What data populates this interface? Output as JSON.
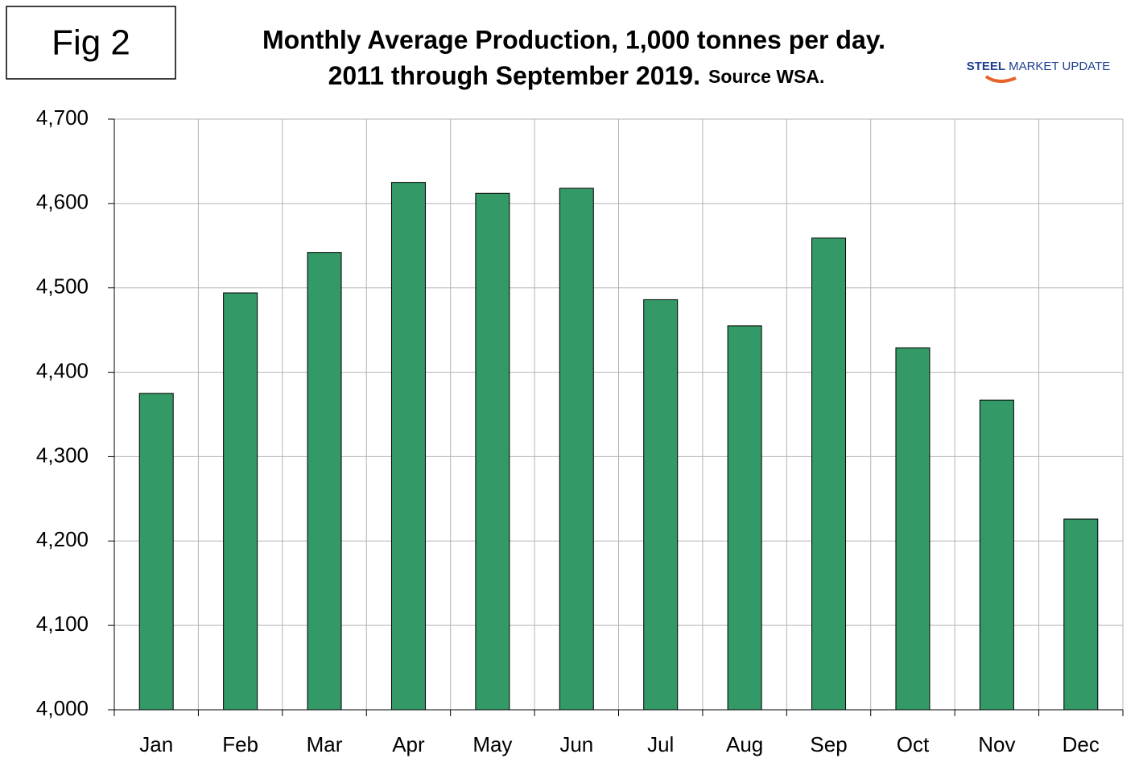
{
  "chart_data": {
    "type": "bar",
    "figure_label": "Fig 2",
    "title": "Monthly Average Production, 1,000 tonnes per day.",
    "subtitle": "2011 through September 2019.",
    "source": "Source WSA.",
    "logo": {
      "brand": "STEEL",
      "rest": "MARKET UPDATE"
    },
    "categories": [
      "Jan",
      "Feb",
      "Mar",
      "Apr",
      "May",
      "Jun",
      "Jul",
      "Aug",
      "Sep",
      "Oct",
      "Nov",
      "Dec"
    ],
    "values": [
      4375,
      4494,
      4542,
      4625,
      4612,
      4618,
      4486,
      4455,
      4559,
      4429,
      4367,
      4226
    ],
    "color": "#339966",
    "ylim": [
      4000,
      4700
    ],
    "yticks": [
      {
        "value": 4000,
        "label": "4,000"
      },
      {
        "value": 4100,
        "label": "4,100"
      },
      {
        "value": 4200,
        "label": "4,200"
      },
      {
        "value": 4300,
        "label": "4,300"
      },
      {
        "value": 4400,
        "label": "4,400"
      },
      {
        "value": 4500,
        "label": "4,500"
      },
      {
        "value": 4600,
        "label": "4,600"
      },
      {
        "value": 4700,
        "label": "4,700"
      }
    ],
    "grid": true
  }
}
